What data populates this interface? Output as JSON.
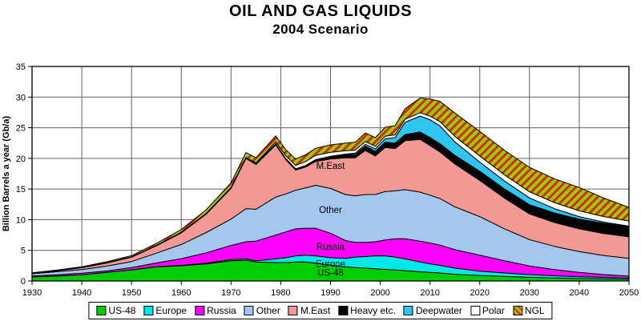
{
  "title": "OIL AND GAS LIQUIDS",
  "subtitle": "2004 Scenario",
  "colors": {
    "us48": "#00CE00",
    "europe": "#00E9E9",
    "russia": "#FF00FF",
    "other": "#A4C7EE",
    "meast": "#F49895",
    "heavy": "#000000",
    "deepwater": "#2EC6F0",
    "polar": "#FFFFFF",
    "ngl_green": "#9ACD00",
    "ngl_red": "#D42A00",
    "grid": "#606060",
    "axis": "#000000"
  },
  "chart_data": {
    "type": "area",
    "stacked": true,
    "title": "OIL AND GAS LIQUIDS",
    "subtitle": "2004 Scenario",
    "ylabel": "Billion Barrels a year (Gb/a)",
    "xlabel": "",
    "xlim": [
      1930,
      2050
    ],
    "ylim": [
      0,
      35
    ],
    "xtick_step": 10,
    "ytick_step": 5,
    "grid": "both",
    "legend_position": "bottom",
    "x": [
      1930,
      1935,
      1940,
      1945,
      1950,
      1955,
      1960,
      1965,
      1970,
      1973,
      1975,
      1979,
      1981,
      1983,
      1985,
      1987,
      1990,
      1993,
      1995,
      1997,
      1999,
      2001,
      2003,
      2005,
      2008,
      2010,
      2012,
      2015,
      2020,
      2025,
      2030,
      2035,
      2040,
      2045,
      2050
    ],
    "series": [
      {
        "name": "US-48",
        "key": "us48",
        "values": [
          0.65,
          0.8,
          1.0,
          1.4,
          1.8,
          2.3,
          2.5,
          2.8,
          3.3,
          3.4,
          3.1,
          3.0,
          3.0,
          3.1,
          3.1,
          2.9,
          2.6,
          2.3,
          2.2,
          2.1,
          2.0,
          1.9,
          1.8,
          1.7,
          1.5,
          1.4,
          1.3,
          1.1,
          0.9,
          0.75,
          0.6,
          0.5,
          0.4,
          0.35,
          0.3
        ]
      },
      {
        "name": "Europe",
        "key": "europe",
        "values": [
          0.02,
          0.02,
          0.02,
          0.03,
          0.03,
          0.04,
          0.05,
          0.1,
          0.2,
          0.2,
          0.2,
          0.6,
          0.8,
          1.0,
          1.1,
          1.2,
          1.2,
          1.4,
          1.7,
          1.9,
          2.1,
          2.2,
          2.1,
          1.9,
          1.6,
          1.4,
          1.25,
          1.0,
          0.7,
          0.55,
          0.45,
          0.35,
          0.3,
          0.25,
          0.2
        ]
      },
      {
        "name": "Russia",
        "key": "russia",
        "values": [
          0.15,
          0.2,
          0.25,
          0.2,
          0.35,
          0.6,
          1.1,
          1.7,
          2.3,
          2.8,
          3.2,
          3.9,
          4.2,
          4.4,
          4.4,
          4.5,
          4.0,
          2.9,
          2.4,
          2.3,
          2.3,
          2.6,
          3.0,
          3.3,
          3.4,
          3.4,
          3.3,
          3.0,
          2.6,
          2.0,
          1.4,
          1.0,
          0.7,
          0.45,
          0.3
        ]
      },
      {
        "name": "Other",
        "key": "other",
        "values": [
          0.35,
          0.5,
          0.6,
          0.8,
          1.0,
          1.6,
          2.3,
          3.3,
          4.3,
          5.4,
          5.2,
          6.2,
          6.2,
          6.3,
          6.6,
          7.0,
          7.3,
          7.5,
          7.6,
          7.8,
          7.7,
          7.9,
          7.8,
          8.0,
          8.0,
          7.8,
          7.6,
          7.0,
          6.3,
          5.2,
          4.3,
          3.8,
          3.4,
          3.1,
          2.9
        ]
      },
      {
        "name": "M.East",
        "key": "meast",
        "values": [
          0.1,
          0.15,
          0.3,
          0.5,
          0.7,
          1.2,
          1.9,
          3.0,
          5.0,
          8.2,
          7.3,
          8.5,
          5.6,
          3.3,
          3.4,
          3.9,
          4.8,
          6.0,
          6.2,
          7.2,
          6.3,
          7.2,
          6.9,
          8.0,
          8.6,
          8.1,
          7.6,
          7.0,
          5.9,
          5.0,
          4.2,
          3.9,
          3.7,
          3.6,
          3.5
        ]
      },
      {
        "name": "Heavy etc.",
        "key": "heavy",
        "values": [
          0.02,
          0.03,
          0.05,
          0.05,
          0.05,
          0.08,
          0.1,
          0.12,
          0.15,
          0.15,
          0.15,
          0.2,
          0.2,
          0.2,
          0.25,
          0.3,
          0.4,
          0.5,
          0.55,
          0.7,
          0.75,
          0.85,
          0.9,
          1.0,
          1.2,
          1.3,
          1.35,
          1.4,
          1.5,
          1.5,
          1.5,
          1.55,
          1.6,
          1.65,
          1.7
        ]
      },
      {
        "name": "Deepwater",
        "key": "deepwater",
        "values": [
          0,
          0,
          0,
          0,
          0,
          0,
          0,
          0,
          0,
          0,
          0,
          0,
          0,
          0,
          0,
          0,
          0.05,
          0.1,
          0.2,
          0.3,
          0.4,
          0.55,
          0.9,
          2.0,
          2.6,
          2.9,
          2.9,
          2.2,
          1.5,
          1.3,
          1.1,
          0.7,
          0.4,
          0.2,
          0.05
        ]
      },
      {
        "name": "Polar",
        "key": "polar",
        "values": [
          0,
          0,
          0,
          0,
          0,
          0,
          0,
          0,
          0,
          0,
          0.1,
          0.3,
          0.45,
          0.55,
          0.65,
          0.7,
          0.65,
          0.55,
          0.5,
          0.45,
          0.42,
          0.42,
          0.45,
          0.5,
          0.55,
          0.6,
          0.7,
          0.9,
          1.0,
          1.0,
          1.0,
          0.98,
          0.95,
          0.9,
          0.85
        ]
      },
      {
        "name": "NGL",
        "key": "ngl",
        "pattern": "diagonal-stripes",
        "values": [
          0.05,
          0.07,
          0.1,
          0.15,
          0.2,
          0.3,
          0.45,
          0.6,
          0.75,
          0.8,
          0.85,
          0.95,
          1.0,
          1.05,
          1.1,
          1.15,
          1.2,
          1.25,
          1.3,
          1.4,
          1.42,
          1.45,
          1.5,
          1.7,
          2.4,
          2.8,
          3.3,
          3.8,
          4.0,
          4.0,
          4.0,
          3.9,
          3.8,
          3.0,
          2.2
        ]
      }
    ],
    "annotations": [
      {
        "text": "M.East",
        "year": 1990,
        "value": 18.3
      },
      {
        "text": "Other",
        "year": 1990,
        "value": 11.1
      },
      {
        "text": "Russia",
        "year": 1990,
        "value": 5.1
      },
      {
        "text": "Europe",
        "year": 1990,
        "value": 2.3
      },
      {
        "text": "US-48",
        "year": 1990,
        "value": 0.85
      }
    ]
  }
}
